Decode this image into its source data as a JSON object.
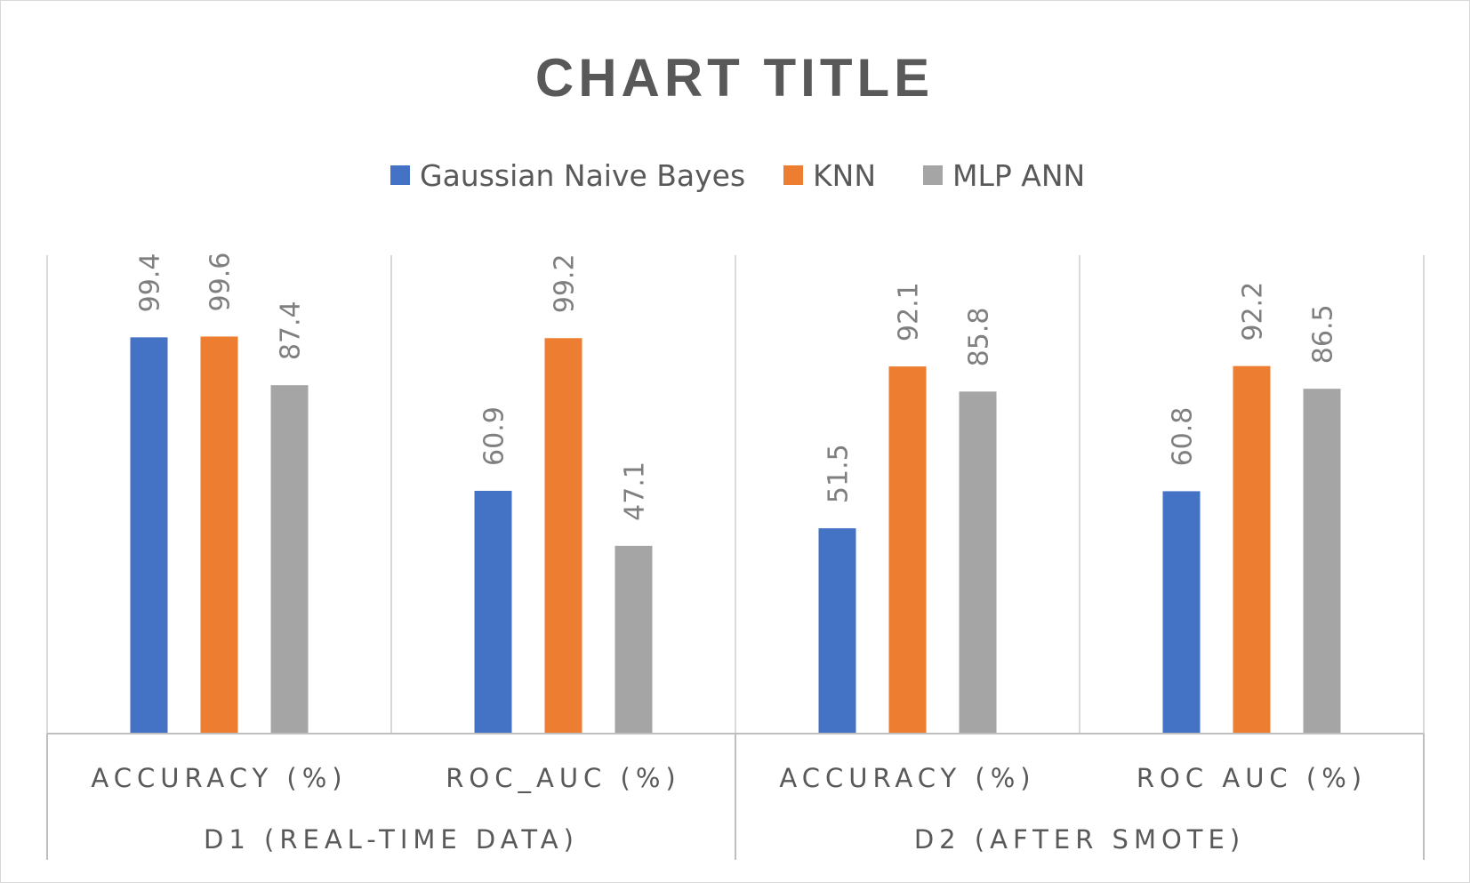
{
  "chart_data": {
    "type": "bar",
    "title": "CHART TITLE",
    "categories": [
      "ACCURACY (%)",
      "ROC_AUC (%)",
      "ACCURACY (%)",
      "ROC AUC (%)"
    ],
    "groups": [
      {
        "label": "D1 (REAL-TIME DATA)",
        "categories": [
          0,
          1
        ]
      },
      {
        "label": "D2 (AFTER SMOTE)",
        "categories": [
          2,
          3
        ]
      }
    ],
    "series": [
      {
        "name": "Gaussian Naive Bayes",
        "color": "#4472c4",
        "values": [
          99.4,
          60.9,
          51.5,
          60.8
        ]
      },
      {
        "name": "KNN",
        "color": "#ed7d31",
        "values": [
          99.6,
          99.2,
          92.1,
          92.2
        ]
      },
      {
        "name": "MLP ANN",
        "color": "#a5a5a5",
        "values": [
          87.4,
          47.1,
          85.8,
          86.5
        ]
      }
    ],
    "ylim": [
      0,
      120
    ],
    "grid": "vertical",
    "legend": "top-center",
    "data_labels": true
  }
}
